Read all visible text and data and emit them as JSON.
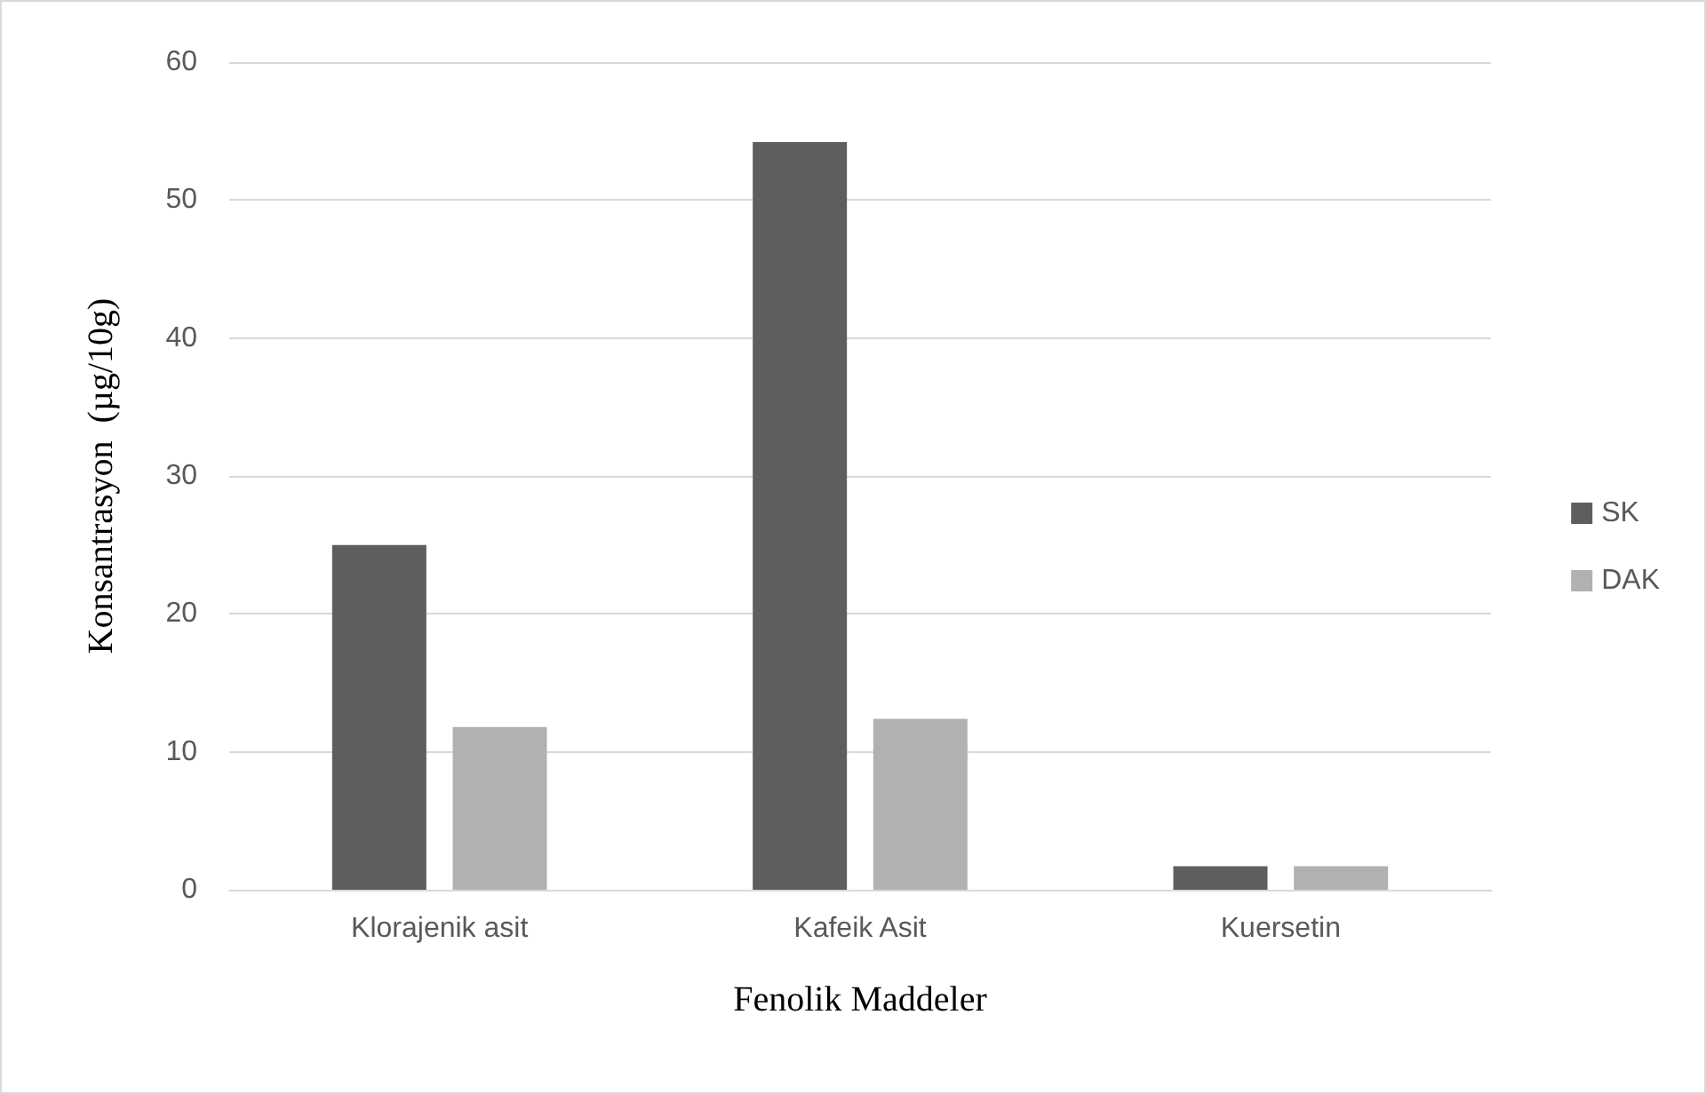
{
  "chart_data": {
    "type": "bar",
    "xlabel": "Fenolik Maddeler",
    "ylabel": "Konsantrasyon  (µg/10g)",
    "categories": [
      "Klorajenik asit",
      "Kafeik Asit",
      "Kuersetin"
    ],
    "series": [
      {
        "name": "SK",
        "color": "#5e5e5e",
        "values": [
          25.0,
          54.2,
          1.7
        ]
      },
      {
        "name": "DAK",
        "color": "#b1b1b1",
        "values": [
          11.8,
          12.4,
          1.7
        ]
      }
    ],
    "ylim": [
      0,
      60
    ],
    "yticks": [
      0,
      10,
      20,
      30,
      40,
      50,
      60
    ],
    "grid": "y",
    "legend": "right"
  }
}
